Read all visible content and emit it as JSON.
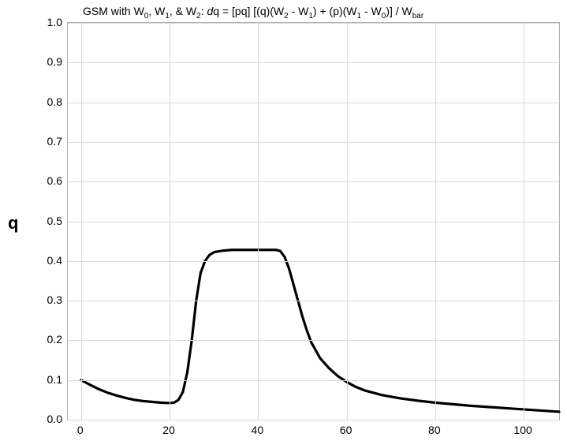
{
  "chart": {
    "type": "line",
    "title_parts": {
      "prefix": "GSM with W",
      "sub0": "0",
      "sep1": ", W",
      "sub1": "1",
      "sep2": ", & W",
      "sub2": "2",
      "colon": ":   ",
      "dq": "d",
      "q": "q = [pq] [(q)(W",
      "sub2b": "2",
      "minus1": " - W",
      "sub1b": "1",
      "close1": ") + (p)(W",
      "sub1c": "1",
      "minus0": " - W",
      "sub0b": "0",
      "close2": ")] / W",
      "subbar": "bar"
    },
    "y_label": "q",
    "background_color": "#ffffff",
    "grid_color": "#d9d9d9",
    "border_color": "#b0b0b0",
    "xlim": [
      -3,
      108
    ],
    "ylim": [
      0.0,
      1.0
    ],
    "xticks": [
      0,
      20,
      40,
      60,
      80,
      100
    ],
    "yticks": [
      0.0,
      0.1,
      0.2,
      0.3,
      0.4,
      0.5,
      0.6,
      0.7,
      0.8,
      0.9,
      1.0
    ],
    "ytick_labels": [
      "0.0",
      "0.1",
      "0.2",
      "0.3",
      "0.4",
      "0.5",
      "0.6",
      "0.7",
      "0.8",
      "0.9",
      "1.0"
    ],
    "tick_fontsize": 14,
    "title_fontsize": 14,
    "ylabel_fontsize": 22,
    "series": {
      "color": "#000000",
      "line_width": 3.2,
      "x": [
        0,
        2,
        4,
        6,
        8,
        10,
        12,
        14,
        16,
        18,
        20,
        21,
        22,
        23,
        24,
        25,
        26,
        27,
        28,
        29,
        30,
        32,
        34,
        36,
        38,
        40,
        42,
        44,
        45,
        46,
        47,
        48,
        49,
        50,
        51,
        52,
        54,
        56,
        58,
        60,
        62,
        64,
        68,
        72,
        76,
        80,
        84,
        88,
        92,
        96,
        100,
        104,
        108
      ],
      "y": [
        0.1,
        0.088,
        0.077,
        0.068,
        0.061,
        0.055,
        0.05,
        0.047,
        0.045,
        0.043,
        0.042,
        0.043,
        0.05,
        0.07,
        0.12,
        0.2,
        0.3,
        0.37,
        0.4,
        0.415,
        0.422,
        0.426,
        0.428,
        0.428,
        0.428,
        0.428,
        0.428,
        0.428,
        0.425,
        0.41,
        0.38,
        0.34,
        0.3,
        0.26,
        0.225,
        0.195,
        0.155,
        0.13,
        0.11,
        0.095,
        0.083,
        0.074,
        0.062,
        0.054,
        0.048,
        0.043,
        0.039,
        0.035,
        0.032,
        0.029,
        0.026,
        0.023,
        0.02
      ]
    }
  }
}
